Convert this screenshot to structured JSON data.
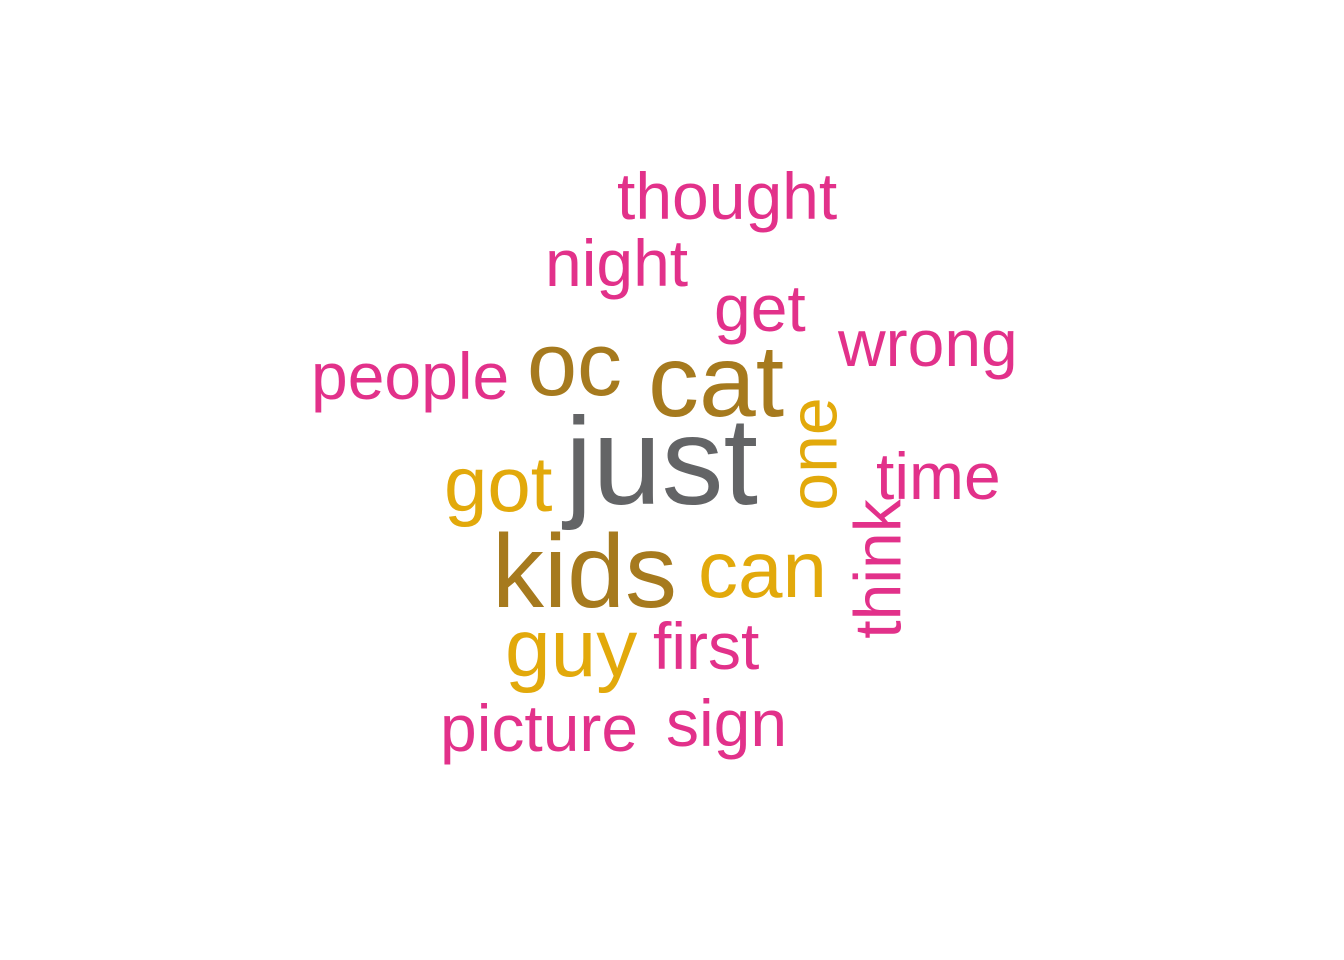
{
  "colors": {
    "gray": "#636466",
    "brown": "#a67a1e",
    "gold": "#e2a90b",
    "pink": "#e2318a"
  },
  "words": {
    "just": "just",
    "kids": "kids",
    "cat": "cat",
    "oc": "oc",
    "got": "got",
    "can": "can",
    "guy": "guy",
    "one": "one",
    "thought": "thought",
    "night": "night",
    "get": "get",
    "wrong": "wrong",
    "people": "people",
    "time": "time",
    "think": "think",
    "first": "first",
    "picture": "picture",
    "sign": "sign"
  }
}
